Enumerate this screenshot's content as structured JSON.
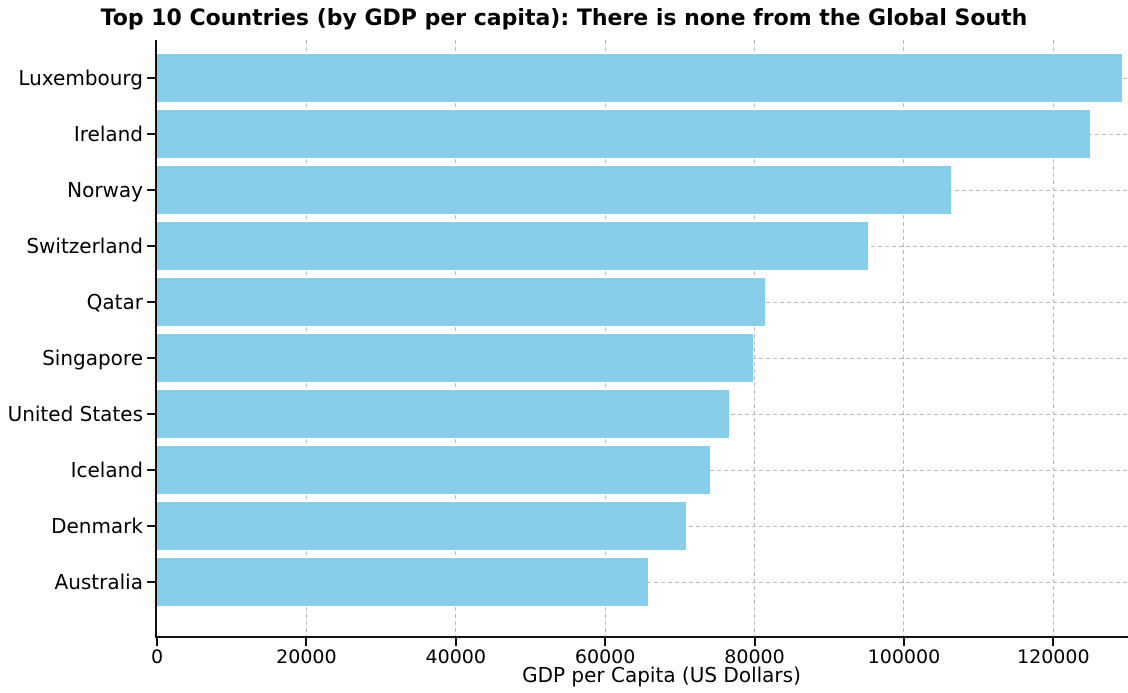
{
  "chart_data": {
    "type": "bar",
    "orientation": "horizontal",
    "title": "Top 10 Countries (by GDP per capita): There is none from the Global South",
    "xlabel": "GDP per Capita (US Dollars)",
    "ylabel": "",
    "categories": [
      "Luxembourg",
      "Ireland",
      "Norway",
      "Switzerland",
      "Qatar",
      "Singapore",
      "United States",
      "Iceland",
      "Denmark",
      "Australia"
    ],
    "values": [
      129200,
      124900,
      106300,
      95200,
      81400,
      79800,
      76600,
      74100,
      70800,
      65700
    ],
    "xticks": [
      0,
      20000,
      40000,
      60000,
      80000,
      100000,
      120000
    ],
    "xlim": [
      0,
      130000
    ],
    "grid": true,
    "grid_style": "dashed",
    "legend": false,
    "bar_color": "#87CEEB",
    "gridline_color": "#b9b9b9",
    "spine_color": "#111111",
    "text_color": "#000000"
  }
}
